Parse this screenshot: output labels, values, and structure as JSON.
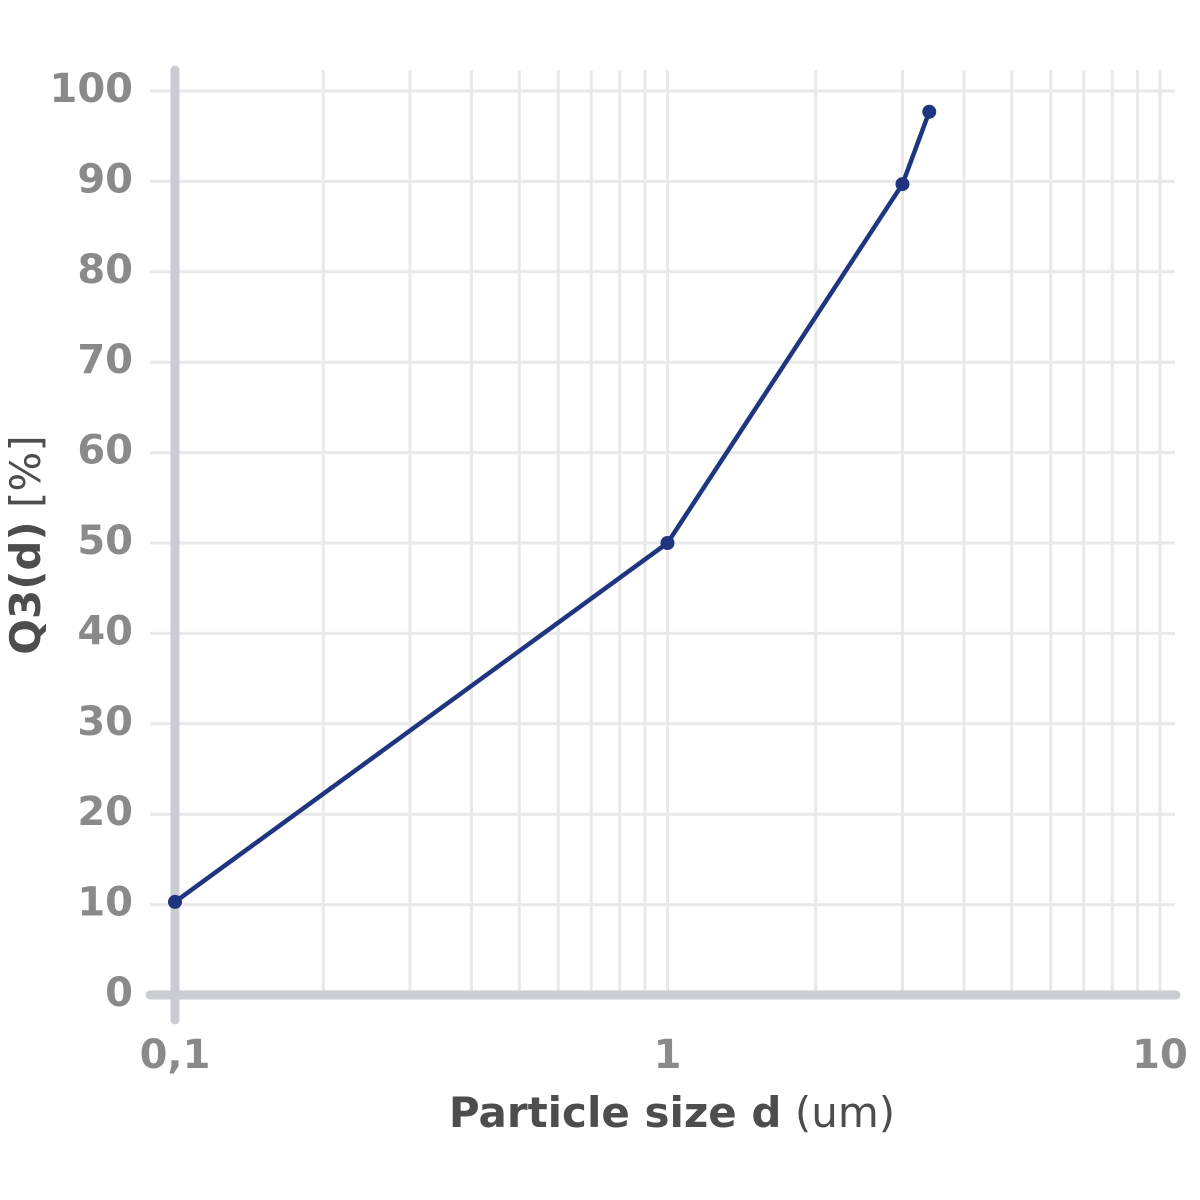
{
  "chart_data": {
    "type": "line",
    "xlabel_main": "Particle size d",
    "xlabel_unit": "(um)",
    "ylabel_main": "Q3(d)",
    "ylabel_unit": "[%]",
    "x": [
      0.1,
      1,
      3,
      3.4
    ],
    "series": [
      {
        "color": "#1f3580",
        "values": [
          10.3,
          50,
          89.7,
          97.7
        ]
      }
    ],
    "xlog": true,
    "xlim": [
      0.1,
      10
    ],
    "xticks": [
      {
        "value": 0.1,
        "label": "0,1"
      },
      1,
      10
    ],
    "xgrid": [
      0.2,
      0.3,
      0.4,
      0.5,
      0.6,
      0.7,
      0.8,
      0.9,
      2,
      3,
      4,
      5,
      6,
      7,
      8,
      9
    ],
    "ylim": [
      0,
      100
    ],
    "yticks": [
      0,
      10,
      20,
      30,
      40,
      50,
      60,
      70,
      80,
      90,
      100
    ],
    "grid": true
  }
}
